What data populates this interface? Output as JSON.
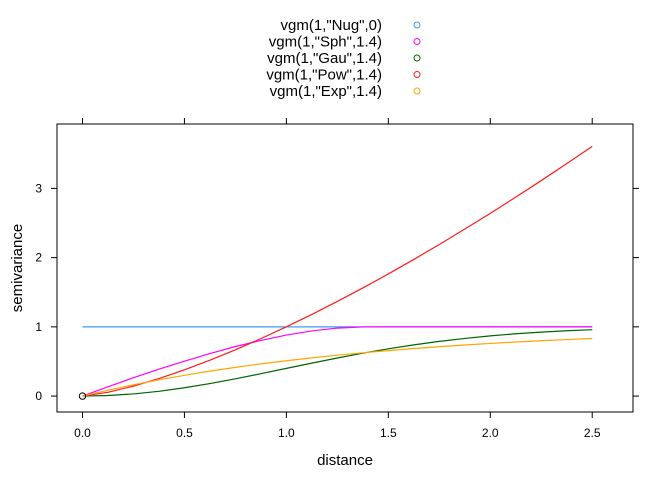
{
  "chart_data": {
    "type": "line",
    "title": "",
    "xlabel": "distance",
    "ylabel": "semivariance",
    "xlim": [
      -0.125,
      2.7
    ],
    "ylim": [
      -0.23,
      3.93
    ],
    "xticks": [
      0.0,
      0.5,
      1.0,
      1.5,
      2.0,
      2.5
    ],
    "xtick_labels": [
      "0.0",
      "0.5",
      "1.0",
      "1.5",
      "2.0",
      "2.5"
    ],
    "yticks": [
      0,
      1,
      2,
      3
    ],
    "ytick_labels": [
      "0",
      "1",
      "2",
      "3"
    ],
    "grid": false,
    "legend_position": "top",
    "point": {
      "x": 0,
      "y": 0
    },
    "x": [
      0,
      0.125,
      0.25,
      0.375,
      0.5,
      0.625,
      0.75,
      0.875,
      1.0,
      1.125,
      1.25,
      1.375,
      1.5,
      1.625,
      1.75,
      1.875,
      2.0,
      2.125,
      2.25,
      2.375,
      2.5
    ],
    "series": [
      {
        "name": "vgm(1,\"Nug\",0)",
        "color": "#3d9df2",
        "values": [
          1,
          1,
          1,
          1,
          1,
          1,
          1,
          1,
          1,
          1,
          1,
          1,
          1,
          1,
          1,
          1,
          1,
          1,
          1,
          1,
          1
        ]
      },
      {
        "name": "vgm(1,\"Sph\",1.4)",
        "color": "#ff00ff",
        "values": [
          0,
          0.133,
          0.265,
          0.389,
          0.504,
          0.614,
          0.716,
          0.804,
          0.881,
          0.941,
          0.982,
          0.999,
          1,
          1,
          1,
          1,
          1,
          1,
          1,
          1,
          1
        ]
      },
      {
        "name": "vgm(1,\"Gau\",1.4)",
        "color": "#006400",
        "values": [
          0,
          0.008,
          0.031,
          0.069,
          0.12,
          0.181,
          0.249,
          0.323,
          0.4,
          0.476,
          0.55,
          0.619,
          0.683,
          0.74,
          0.79,
          0.833,
          0.87,
          0.9,
          0.924,
          0.944,
          0.959
        ]
      },
      {
        "name": "vgm(1,\"Pow\",1.4)",
        "color": "#ff1a1a",
        "values": [
          0,
          0.054,
          0.144,
          0.253,
          0.379,
          0.518,
          0.669,
          0.83,
          1.0,
          1.179,
          1.367,
          1.562,
          1.764,
          1.974,
          2.19,
          2.413,
          2.639,
          2.874,
          3.113,
          3.358,
          3.606
        ]
      },
      {
        "name": "vgm(1,\"Exp\",1.4)",
        "color": "#ffa500",
        "values": [
          0,
          0.085,
          0.163,
          0.235,
          0.3,
          0.36,
          0.415,
          0.465,
          0.51,
          0.552,
          0.591,
          0.625,
          0.657,
          0.687,
          0.713,
          0.738,
          0.76,
          0.781,
          0.799,
          0.816,
          0.832
        ]
      }
    ]
  }
}
